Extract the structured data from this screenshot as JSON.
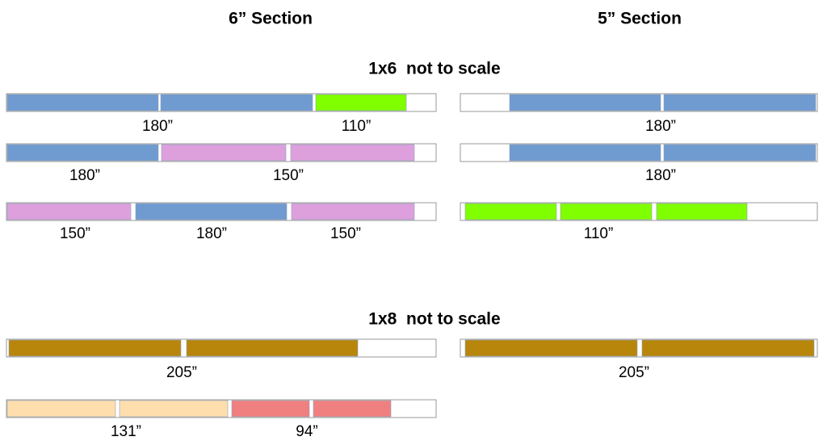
{
  "headers": [
    "6” Section",
    "5” Section"
  ],
  "groups": [
    {
      "title": "1x6  not to scale",
      "boards": [
        {
          "labels": [
            "180”",
            "110”"
          ]
        },
        {
          "labels": [
            "180”",
            "150”"
          ]
        },
        {
          "labels": [
            "150”",
            "180”",
            "150”"
          ]
        },
        {
          "labels": [
            "180”"
          ]
        },
        {
          "labels": [
            "180”"
          ]
        },
        {
          "labels": [
            "110”"
          ]
        }
      ]
    },
    {
      "title": "1x8  not to scale",
      "boards": [
        {
          "labels": [
            "205”"
          ]
        },
        {
          "labels": [
            "205”"
          ]
        },
        {
          "labels": [
            "131”",
            "94”"
          ]
        }
      ]
    }
  ]
}
